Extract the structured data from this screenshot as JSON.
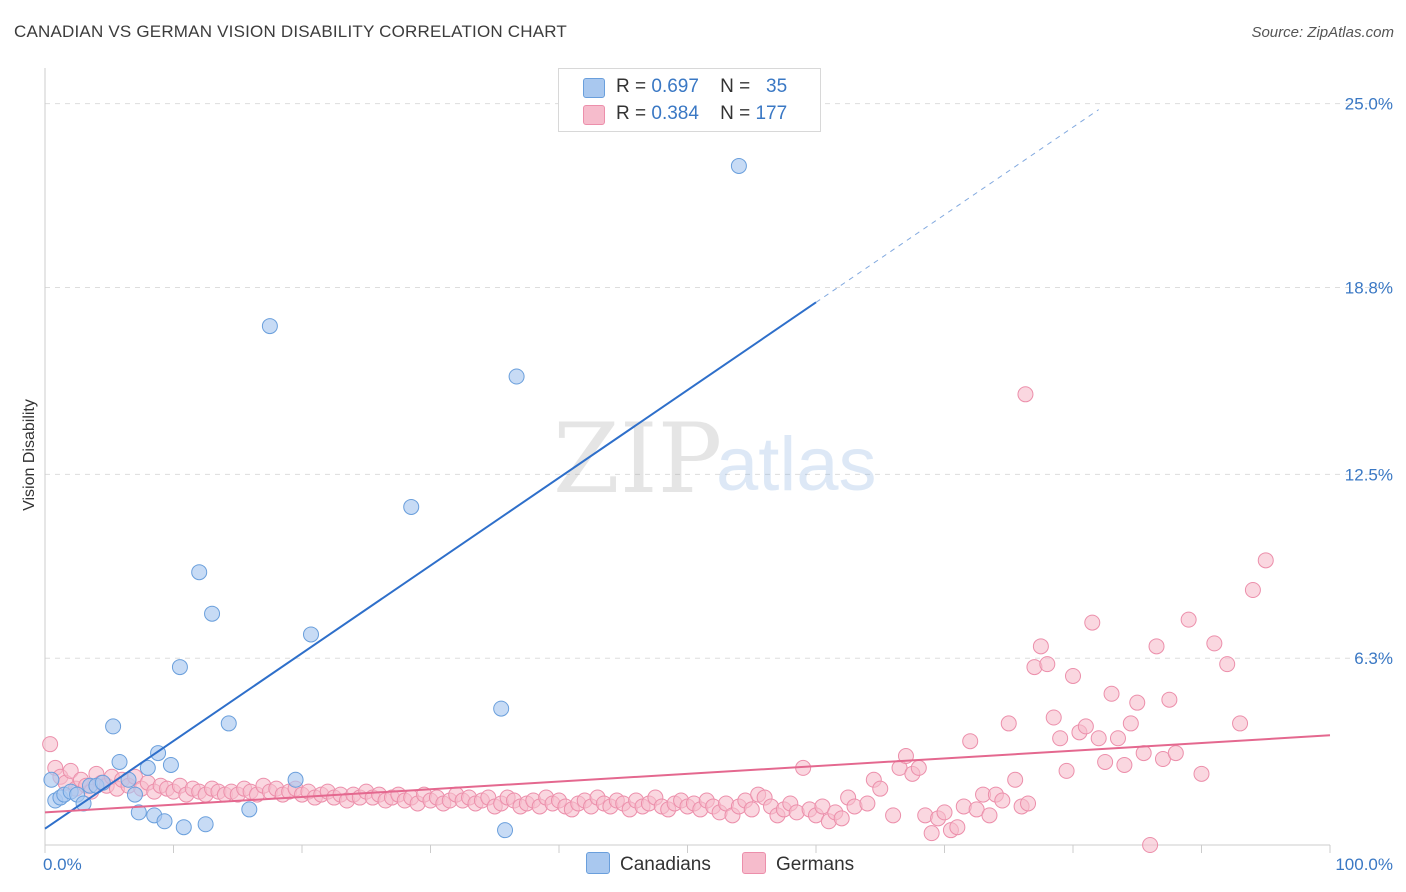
{
  "title": "CANADIAN VS GERMAN VISION DISABILITY CORRELATION CHART",
  "source": "Source: ZipAtlas.com",
  "watermark": {
    "zip": "ZIP",
    "atlas": "atlas"
  },
  "colors": {
    "canadians_fill": "#a9c8ef",
    "canadians_stroke": "#6a9fdc",
    "canadians_line": "#2e6fca",
    "germans_fill": "#f6bccc",
    "germans_stroke": "#ec8fab",
    "germans_line": "#e4688f",
    "tick_text": "#3a78c4",
    "grid": "#dddddd"
  },
  "legend": {
    "rows": [
      {
        "r_label": "R =",
        "r_value": "0.697",
        "n_label": "N =",
        "n_value": "35"
      },
      {
        "r_label": "R =",
        "r_value": "0.384",
        "n_label": "N =",
        "n_value": "177"
      }
    ]
  },
  "bottom_legend": {
    "canadians": "Canadians",
    "germans": "Germans"
  },
  "chart_data": {
    "type": "scatter",
    "title": "CANADIAN VS GERMAN VISION DISABILITY CORRELATION CHART",
    "xlabel": "",
    "ylabel": "Vision Disability",
    "xlim": [
      0,
      100
    ],
    "ylim": [
      0,
      25.9
    ],
    "x_tick_labels": [
      "0.0%",
      "100.0%"
    ],
    "y_ticks": [
      6.3,
      12.5,
      18.8,
      25.0
    ],
    "y_tick_labels": [
      "6.3%",
      "12.5%",
      "18.8%",
      "25.0%"
    ],
    "grid": true,
    "series": [
      {
        "name": "Canadians",
        "r": 0.697,
        "n": 35,
        "trendline": {
          "x0": 0,
          "y0": 0.55,
          "x1": 60,
          "y1": 18.3,
          "dashed_to_x": 82,
          "dashed_to_y": 24.8
        },
        "points": [
          [
            0.5,
            2.2
          ],
          [
            0.8,
            1.5
          ],
          [
            1.2,
            1.6
          ],
          [
            1.5,
            1.7
          ],
          [
            2.0,
            1.8
          ],
          [
            2.5,
            1.7
          ],
          [
            3.0,
            1.4
          ],
          [
            3.5,
            2.0
          ],
          [
            4.0,
            2.0
          ],
          [
            4.5,
            2.1
          ],
          [
            5.3,
            4.0
          ],
          [
            5.8,
            2.8
          ],
          [
            6.5,
            2.2
          ],
          [
            7.0,
            1.7
          ],
          [
            7.3,
            1.1
          ],
          [
            8.0,
            2.6
          ],
          [
            8.5,
            1.0
          ],
          [
            8.8,
            3.1
          ],
          [
            9.3,
            0.8
          ],
          [
            9.8,
            2.7
          ],
          [
            10.5,
            6.0
          ],
          [
            10.8,
            0.6
          ],
          [
            12.0,
            9.2
          ],
          [
            12.5,
            0.7
          ],
          [
            13.0,
            7.8
          ],
          [
            14.3,
            4.1
          ],
          [
            15.9,
            1.2
          ],
          [
            17.5,
            17.5
          ],
          [
            19.5,
            2.2
          ],
          [
            20.7,
            7.1
          ],
          [
            28.5,
            11.4
          ],
          [
            35.5,
            4.6
          ],
          [
            35.8,
            0.5
          ],
          [
            36.7,
            15.8
          ],
          [
            54.0,
            22.9
          ]
        ]
      },
      {
        "name": "Germans",
        "r": 0.384,
        "n": 177,
        "trendline": {
          "x0": 0,
          "y0": 1.1,
          "x1": 100,
          "y1": 3.7
        },
        "points": [
          [
            0.4,
            3.4
          ],
          [
            0.8,
            2.6
          ],
          [
            1.2,
            2.3
          ],
          [
            1.6,
            2.1
          ],
          [
            2.0,
            2.5
          ],
          [
            2.4,
            1.9
          ],
          [
            2.8,
            2.2
          ],
          [
            3.2,
            2.0
          ],
          [
            3.6,
            1.8
          ],
          [
            4.0,
            2.4
          ],
          [
            4.4,
            2.1
          ],
          [
            4.8,
            2.0
          ],
          [
            5.2,
            2.3
          ],
          [
            5.6,
            1.9
          ],
          [
            6.0,
            2.2
          ],
          [
            6.5,
            2.0
          ],
          [
            7.0,
            2.3
          ],
          [
            7.5,
            1.9
          ],
          [
            8.0,
            2.1
          ],
          [
            8.5,
            1.8
          ],
          [
            9.0,
            2.0
          ],
          [
            9.5,
            1.9
          ],
          [
            10.0,
            1.8
          ],
          [
            10.5,
            2.0
          ],
          [
            11.0,
            1.7
          ],
          [
            11.5,
            1.9
          ],
          [
            12.0,
            1.8
          ],
          [
            12.5,
            1.7
          ],
          [
            13.0,
            1.9
          ],
          [
            13.5,
            1.8
          ],
          [
            14.0,
            1.7
          ],
          [
            14.5,
            1.8
          ],
          [
            15.0,
            1.7
          ],
          [
            15.5,
            1.9
          ],
          [
            16.0,
            1.8
          ],
          [
            16.5,
            1.7
          ],
          [
            17.0,
            2.0
          ],
          [
            17.5,
            1.8
          ],
          [
            18.0,
            1.9
          ],
          [
            18.5,
            1.7
          ],
          [
            19.0,
            1.8
          ],
          [
            19.5,
            1.9
          ],
          [
            20.0,
            1.7
          ],
          [
            20.5,
            1.8
          ],
          [
            21.0,
            1.6
          ],
          [
            21.5,
            1.7
          ],
          [
            22.0,
            1.8
          ],
          [
            22.5,
            1.6
          ],
          [
            23.0,
            1.7
          ],
          [
            23.5,
            1.5
          ],
          [
            24.0,
            1.7
          ],
          [
            24.5,
            1.6
          ],
          [
            25.0,
            1.8
          ],
          [
            25.5,
            1.6
          ],
          [
            26.0,
            1.7
          ],
          [
            26.5,
            1.5
          ],
          [
            27.0,
            1.6
          ],
          [
            27.5,
            1.7
          ],
          [
            28.0,
            1.5
          ],
          [
            28.5,
            1.6
          ],
          [
            29.0,
            1.4
          ],
          [
            29.5,
            1.7
          ],
          [
            30.0,
            1.5
          ],
          [
            30.5,
            1.6
          ],
          [
            31.0,
            1.4
          ],
          [
            31.5,
            1.5
          ],
          [
            32.0,
            1.7
          ],
          [
            32.5,
            1.5
          ],
          [
            33.0,
            1.6
          ],
          [
            33.5,
            1.4
          ],
          [
            34.0,
            1.5
          ],
          [
            34.5,
            1.6
          ],
          [
            35.0,
            1.3
          ],
          [
            35.5,
            1.4
          ],
          [
            36.0,
            1.6
          ],
          [
            36.5,
            1.5
          ],
          [
            37.0,
            1.3
          ],
          [
            37.5,
            1.4
          ],
          [
            38.0,
            1.5
          ],
          [
            38.5,
            1.3
          ],
          [
            39.0,
            1.6
          ],
          [
            39.5,
            1.4
          ],
          [
            40.0,
            1.5
          ],
          [
            40.5,
            1.3
          ],
          [
            41.0,
            1.2
          ],
          [
            41.5,
            1.4
          ],
          [
            42.0,
            1.5
          ],
          [
            42.5,
            1.3
          ],
          [
            43.0,
            1.6
          ],
          [
            43.5,
            1.4
          ],
          [
            44.0,
            1.3
          ],
          [
            44.5,
            1.5
          ],
          [
            45.0,
            1.4
          ],
          [
            45.5,
            1.2
          ],
          [
            46.0,
            1.5
          ],
          [
            46.5,
            1.3
          ],
          [
            47.0,
            1.4
          ],
          [
            47.5,
            1.6
          ],
          [
            48.0,
            1.3
          ],
          [
            48.5,
            1.2
          ],
          [
            49.0,
            1.4
          ],
          [
            49.5,
            1.5
          ],
          [
            50.0,
            1.3
          ],
          [
            50.5,
            1.4
          ],
          [
            51.0,
            1.2
          ],
          [
            51.5,
            1.5
          ],
          [
            52.0,
            1.3
          ],
          [
            52.5,
            1.1
          ],
          [
            53.0,
            1.4
          ],
          [
            53.5,
            1.0
          ],
          [
            54.0,
            1.3
          ],
          [
            54.5,
            1.5
          ],
          [
            55.0,
            1.2
          ],
          [
            55.5,
            1.7
          ],
          [
            56.0,
            1.6
          ],
          [
            56.5,
            1.3
          ],
          [
            57.0,
            1.0
          ],
          [
            57.5,
            1.2
          ],
          [
            58.0,
            1.4
          ],
          [
            58.5,
            1.1
          ],
          [
            59.0,
            2.6
          ],
          [
            59.5,
            1.2
          ],
          [
            60.0,
            1.0
          ],
          [
            60.5,
            1.3
          ],
          [
            61.0,
            0.8
          ],
          [
            61.5,
            1.1
          ],
          [
            62.0,
            0.9
          ],
          [
            62.5,
            1.6
          ],
          [
            63.0,
            1.3
          ],
          [
            64.0,
            1.4
          ],
          [
            64.5,
            2.2
          ],
          [
            65.0,
            1.9
          ],
          [
            66.0,
            1.0
          ],
          [
            66.5,
            2.6
          ],
          [
            67.0,
            3.0
          ],
          [
            67.5,
            2.4
          ],
          [
            68.0,
            2.6
          ],
          [
            68.5,
            1.0
          ],
          [
            69.0,
            0.4
          ],
          [
            69.5,
            0.9
          ],
          [
            70.0,
            1.1
          ],
          [
            70.5,
            0.5
          ],
          [
            71.0,
            0.6
          ],
          [
            71.5,
            1.3
          ],
          [
            72.0,
            3.5
          ],
          [
            72.5,
            1.2
          ],
          [
            73.0,
            1.7
          ],
          [
            73.5,
            1.0
          ],
          [
            74.0,
            1.7
          ],
          [
            74.5,
            1.5
          ],
          [
            75.0,
            4.1
          ],
          [
            75.5,
            2.2
          ],
          [
            76.0,
            1.3
          ],
          [
            76.5,
            1.4
          ],
          [
            77.0,
            6.0
          ],
          [
            77.5,
            6.7
          ],
          [
            78.0,
            6.1
          ],
          [
            78.5,
            4.3
          ],
          [
            79.0,
            3.6
          ],
          [
            79.5,
            2.5
          ],
          [
            80.0,
            5.7
          ],
          [
            80.5,
            3.8
          ],
          [
            81.0,
            4.0
          ],
          [
            81.5,
            7.5
          ],
          [
            82.0,
            3.6
          ],
          [
            82.5,
            2.8
          ],
          [
            83.0,
            5.1
          ],
          [
            83.5,
            3.6
          ],
          [
            84.0,
            2.7
          ],
          [
            84.5,
            4.1
          ],
          [
            85.0,
            4.8
          ],
          [
            85.5,
            3.1
          ],
          [
            86.0,
            0.0
          ],
          [
            86.5,
            6.7
          ],
          [
            87.0,
            2.9
          ],
          [
            87.5,
            4.9
          ],
          [
            88.0,
            3.1
          ],
          [
            89.0,
            7.6
          ],
          [
            90.0,
            2.4
          ],
          [
            91.0,
            6.8
          ],
          [
            92.0,
            6.1
          ],
          [
            93.0,
            4.1
          ],
          [
            94.0,
            8.6
          ],
          [
            95.0,
            9.6
          ],
          [
            76.3,
            15.2
          ]
        ]
      }
    ]
  }
}
